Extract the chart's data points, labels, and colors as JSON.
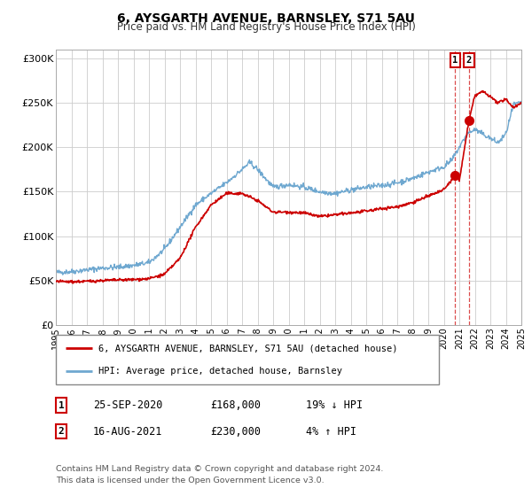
{
  "title": "6, AYSGARTH AVENUE, BARNSLEY, S71 5AU",
  "subtitle": "Price paid vs. HM Land Registry's House Price Index (HPI)",
  "ylim": [
    0,
    310000
  ],
  "xlim_start": 1995,
  "xlim_end": 2025,
  "red_line_color": "#cc0000",
  "blue_line_color": "#6fa8d0",
  "background_color": "#ffffff",
  "grid_color": "#cccccc",
  "sale1_date": 2020.73,
  "sale1_price": 168000,
  "sale2_date": 2021.62,
  "sale2_price": 230000,
  "legend_line1": "6, AYSGARTH AVENUE, BARNSLEY, S71 5AU (detached house)",
  "legend_line2": "HPI: Average price, detached house, Barnsley",
  "sale1_label": "1",
  "sale1_date_str": "25-SEP-2020",
  "sale1_price_str": "£168,000",
  "sale1_pct_str": "19% ↓ HPI",
  "sale2_label": "2",
  "sale2_date_str": "16-AUG-2021",
  "sale2_price_str": "£230,000",
  "sale2_pct_str": "4% ↑ HPI",
  "footer_line1": "Contains HM Land Registry data © Crown copyright and database right 2024.",
  "footer_line2": "This data is licensed under the Open Government Licence v3.0.",
  "yticks": [
    0,
    50000,
    100000,
    150000,
    200000,
    250000,
    300000
  ],
  "ytick_labels": [
    "£0",
    "£50K",
    "£100K",
    "£150K",
    "£200K",
    "£250K",
    "£300K"
  ],
  "xticks": [
    1995,
    1996,
    1997,
    1998,
    1999,
    2000,
    2001,
    2002,
    2003,
    2004,
    2005,
    2006,
    2007,
    2008,
    2009,
    2010,
    2011,
    2012,
    2013,
    2014,
    2015,
    2016,
    2017,
    2018,
    2019,
    2020,
    2021,
    2022,
    2023,
    2024,
    2025
  ]
}
